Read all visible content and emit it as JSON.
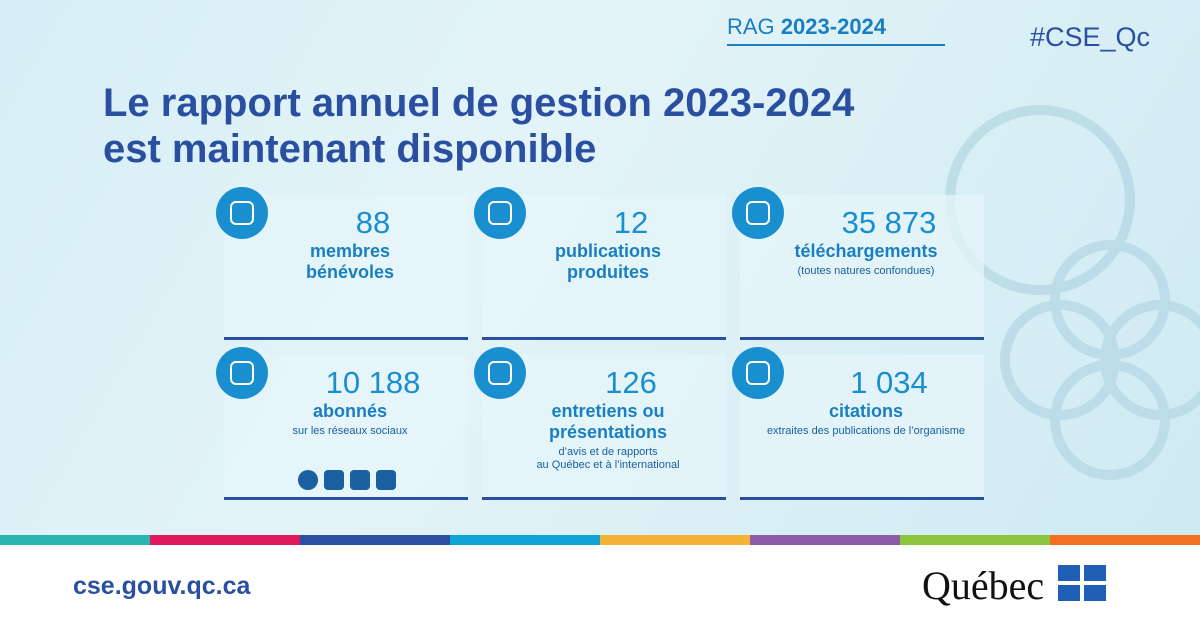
{
  "header": {
    "tag_prefix": "RAG",
    "tag_year": "2023-2024",
    "hashtag": "#CSE_Qc",
    "title_lines": [
      "Le rapport annuel de gestion 2023-2024",
      "est maintenant disponible"
    ]
  },
  "stats": [
    {
      "value": "88",
      "label_lines": [
        "membres",
        "bénévoles"
      ],
      "note_lines": []
    },
    {
      "value": "12",
      "label_lines": [
        "publications",
        "produites"
      ],
      "note_lines": []
    },
    {
      "value": "35 873",
      "label_lines": [
        "téléchargements"
      ],
      "note_lines": [
        "(toutes natures confondues)"
      ]
    },
    {
      "value": "10 188",
      "label_lines": [
        "abonnés"
      ],
      "note_lines": [
        "sur les réseaux sociaux"
      ]
    },
    {
      "value": "126",
      "label_lines": [
        "entretiens ou",
        "présentations"
      ],
      "note_lines": [
        "d’avis et de rapports",
        "au Québec et à l’international"
      ]
    },
    {
      "value": "1 034",
      "label_lines": [
        "citations"
      ],
      "note_lines": [
        "extraites des publications de l’organisme"
      ]
    }
  ],
  "footer": {
    "url": "cse.gouv.qc.ca",
    "logo": "Québec"
  }
}
